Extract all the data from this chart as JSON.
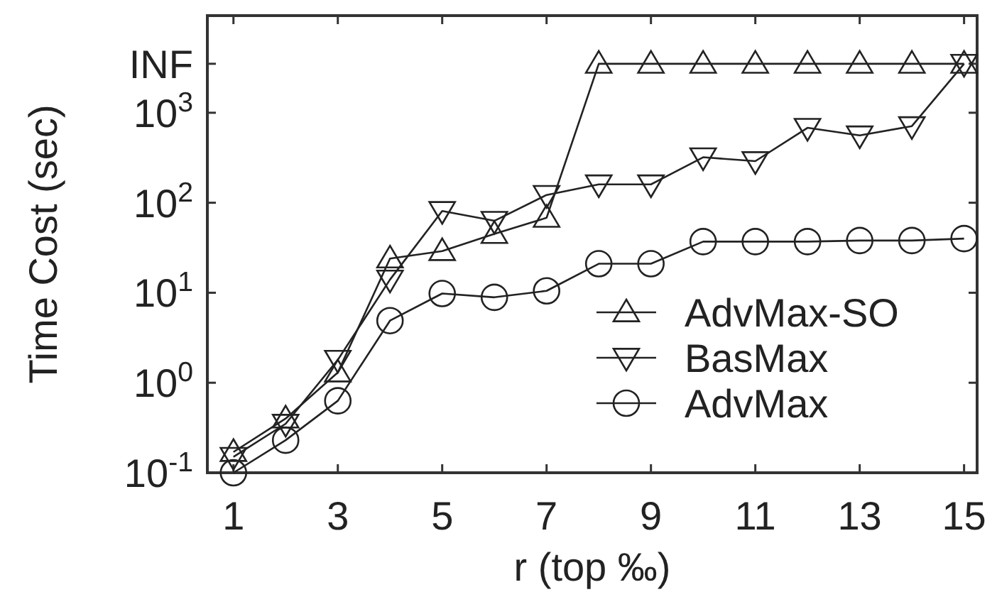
{
  "chart_data": {
    "type": "line",
    "xlabel": "r (top ‰)",
    "ylabel": "Time Cost (sec)",
    "log": "y",
    "x": [
      1,
      2,
      3,
      4,
      5,
      6,
      7,
      8,
      9,
      10,
      11,
      12,
      13,
      14,
      15
    ],
    "xlim": [
      0.5,
      15.25
    ],
    "xticks": [
      1,
      3,
      5,
      7,
      9,
      11,
      13,
      15
    ],
    "ylim": [
      0.1,
      12000
    ],
    "yticks": [
      {
        "value": 0.1,
        "label": "10$^{-1}$"
      },
      {
        "value": 1,
        "label": "10$^{0}$"
      },
      {
        "value": 10,
        "label": "10$^{1}$"
      },
      {
        "value": 100,
        "label": "10$^{2}$"
      },
      {
        "value": 1000,
        "label": "10$^{3}$"
      },
      {
        "value": 3500,
        "label": "INF"
      }
    ],
    "grid": false,
    "legend": "bottom right",
    "line_style": "solid",
    "series": [
      {
        "name": "AdvMax-SO",
        "color": "#222222",
        "marker": "triangle",
        "values": [
          0.17,
          0.4,
          1.3,
          24,
          29,
          45,
          68,
          3500,
          3500,
          3500,
          3500,
          3500,
          3500,
          3500,
          3500
        ]
      },
      {
        "name": "BasMax",
        "color": "#222222",
        "marker": "triangle-down",
        "values": [
          0.15,
          0.35,
          1.8,
          14,
          81,
          63,
          122,
          160,
          160,
          320,
          290,
          680,
          560,
          710,
          3500
        ]
      },
      {
        "name": "AdvMax",
        "color": "#222222",
        "marker": "circle",
        "values": [
          0.1,
          0.23,
          0.63,
          4.9,
          9.8,
          8.9,
          10.5,
          21,
          21,
          37,
          37,
          37,
          38,
          38,
          40
        ]
      }
    ]
  }
}
